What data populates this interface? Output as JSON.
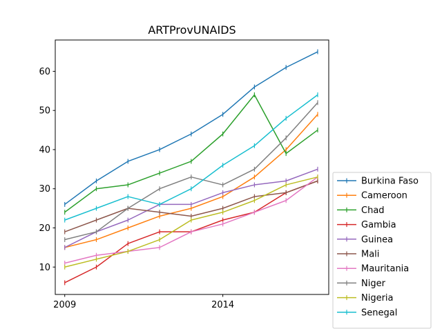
{
  "chart_data": {
    "type": "line",
    "title": "ARTProvUNAIDS",
    "xlabel": "",
    "ylabel": "",
    "x": [
      2009,
      2010,
      2011,
      2012,
      2013,
      2014,
      2015,
      2016,
      2017
    ],
    "x_ticks": [
      2009,
      2014
    ],
    "x_tick_labels": [
      "2009",
      "2014"
    ],
    "xlim": [
      2008.7,
      2017.35
    ],
    "y_ticks": [
      10,
      20,
      30,
      40,
      50,
      60
    ],
    "y_tick_labels": [
      "10",
      "20",
      "30",
      "40",
      "50",
      "60"
    ],
    "ylim": [
      3,
      68
    ],
    "grid": false,
    "legend_position": "outside-right-bottom",
    "marker": "vertical-tick",
    "series": [
      {
        "name": "Burkina Faso",
        "color": "#1f77b4",
        "values": [
          26,
          32,
          37,
          40,
          44,
          49,
          56,
          61,
          65
        ]
      },
      {
        "name": "Cameroon",
        "color": "#ff7f0e",
        "values": [
          15,
          17,
          20,
          23,
          25,
          28,
          33,
          40,
          49
        ]
      },
      {
        "name": "Chad",
        "color": "#2ca02c",
        "values": [
          24,
          30,
          31,
          34,
          37,
          44,
          54,
          39,
          45
        ]
      },
      {
        "name": "Gambia",
        "color": "#d62728",
        "values": [
          6,
          10,
          16,
          19,
          19,
          22,
          24,
          29,
          32
        ]
      },
      {
        "name": "Guinea",
        "color": "#9467bd",
        "values": [
          15,
          19,
          22,
          26,
          26,
          29,
          31,
          32,
          35
        ]
      },
      {
        "name": "Mali",
        "color": "#8c564b",
        "values": [
          19,
          22,
          25,
          24,
          23,
          25,
          28,
          29,
          32
        ]
      },
      {
        "name": "Mauritania",
        "color": "#e377c2",
        "values": [
          11,
          13,
          14,
          15,
          19,
          21,
          24,
          27,
          33
        ]
      },
      {
        "name": "Niger",
        "color": "#7f7f7f",
        "values": [
          17,
          19,
          25,
          30,
          33,
          31,
          35,
          43,
          52
        ]
      },
      {
        "name": "Nigeria",
        "color": "#bcbd22",
        "values": [
          10,
          12,
          14,
          17,
          22,
          24,
          27,
          31,
          33
        ]
      },
      {
        "name": "Senegal",
        "color": "#17becf",
        "values": [
          22,
          25,
          28,
          26,
          30,
          36,
          41,
          48,
          54
        ]
      }
    ]
  }
}
